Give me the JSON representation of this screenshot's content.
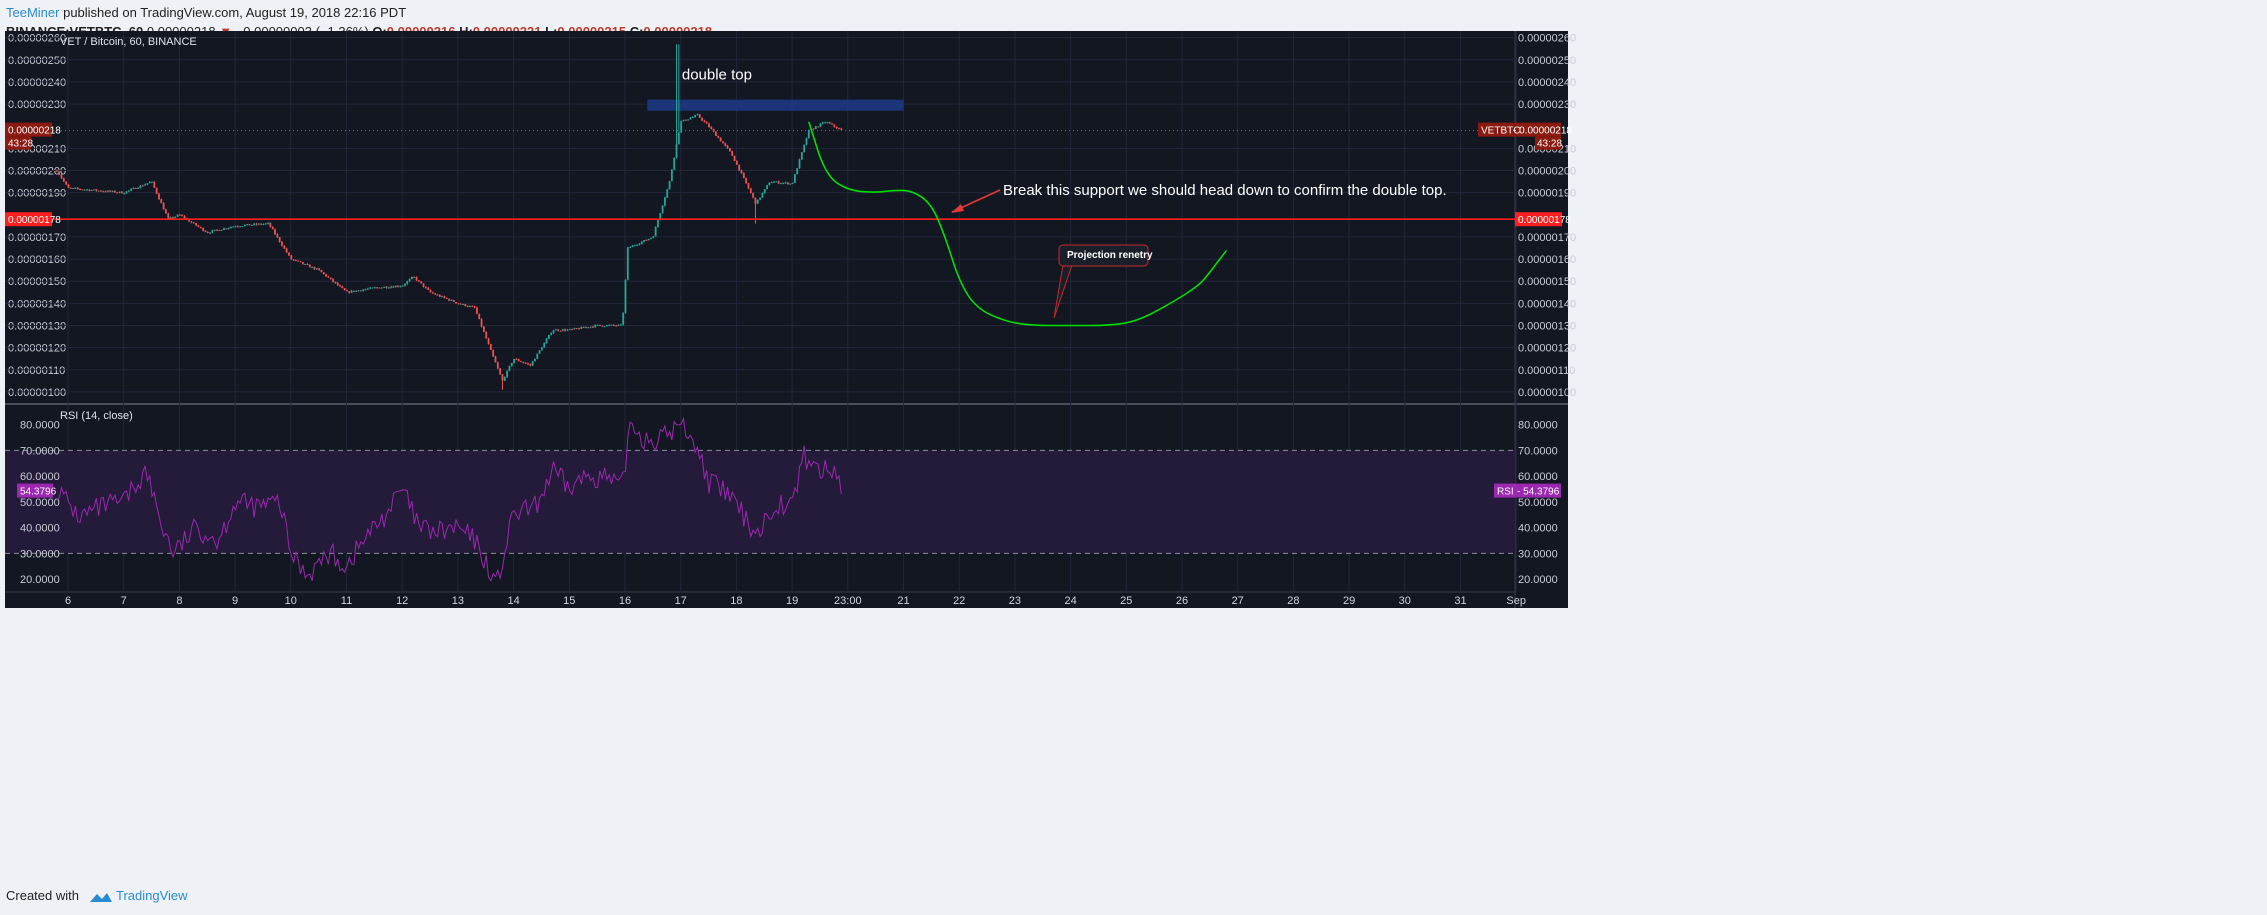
{
  "header": {
    "author": "TeeMiner",
    "published": "published on TradingView.com, August 19, 2018 22:16 PDT",
    "symbol": "BINANCE:VETBTC, 60",
    "last": "0.00000218",
    "change": "−0.00000003 (−1.36%)",
    "open_label": "O:",
    "open": "0.00000216",
    "high_label": "H:",
    "high": "0.00000221",
    "low_label": "L:",
    "low": "0.00000215",
    "close_label": "C:",
    "close": "0.00000218"
  },
  "footer": {
    "created_with": "Created with",
    "brand": "TradingView"
  },
  "colors": {
    "background": "#131722",
    "up": "#26a69a",
    "down": "#ef5350",
    "support": "#ff1f1f",
    "projection": "#00e000",
    "rsi": "#9c27b0",
    "double_top_box": "#1e3a8a"
  },
  "chart_data": [
    {
      "type": "candlestick",
      "title": "VET / Bitcoin, 60, BINANCE",
      "x_ticks": [
        "6",
        "7",
        "8",
        "9",
        "10",
        "11",
        "12",
        "13",
        "14",
        "15",
        "16",
        "17",
        "18",
        "19",
        "23:00",
        "21",
        "22",
        "23",
        "24",
        "25",
        "26",
        "27",
        "28",
        "29",
        "30",
        "31",
        "Sep"
      ],
      "y_ticks": [
        "0.00000260",
        "0.00000250",
        "0.00000240",
        "0.00000230",
        "0.00000210",
        "0.00000200",
        "0.00000190",
        "0.00000170",
        "0.00000160",
        "0.00000150",
        "0.00000140",
        "0.00000130",
        "0.00000120",
        "0.00000110",
        "0.00000100"
      ],
      "ylim": [
        9.5e-07,
        2.63e-06
      ],
      "price_path": [
        [
          5.8,
          2e-06
        ],
        [
          6.0,
          1.92e-06
        ],
        [
          6.5,
          1.91e-06
        ],
        [
          7.0,
          1.9e-06
        ],
        [
          7.5,
          1.95e-06
        ],
        [
          7.8,
          1.78e-06
        ],
        [
          8.0,
          1.8e-06
        ],
        [
          8.5,
          1.72e-06
        ],
        [
          9.0,
          1.75e-06
        ],
        [
          9.6,
          1.76e-06
        ],
        [
          10.0,
          1.6e-06
        ],
        [
          10.5,
          1.55e-06
        ],
        [
          11.0,
          1.45e-06
        ],
        [
          11.5,
          1.47e-06
        ],
        [
          12.0,
          1.48e-06
        ],
        [
          12.2,
          1.52e-06
        ],
        [
          12.5,
          1.45e-06
        ],
        [
          13.0,
          1.4e-06
        ],
        [
          13.3,
          1.38e-06
        ],
        [
          13.6,
          1.18e-06
        ],
        [
          13.8,
          1.05e-06
        ],
        [
          14.0,
          1.15e-06
        ],
        [
          14.3,
          1.12e-06
        ],
        [
          14.7,
          1.28e-06
        ],
        [
          15.0,
          1.28e-06
        ],
        [
          15.5,
          1.3e-06
        ],
        [
          15.95,
          1.3e-06
        ],
        [
          16.05,
          1.65e-06
        ],
        [
          16.5,
          1.7e-06
        ],
        [
          16.8,
          1.95e-06
        ],
        [
          17.0,
          2.22e-06
        ],
        [
          17.3,
          2.25e-06
        ],
        [
          17.5,
          2.2e-06
        ],
        [
          17.9,
          2.08e-06
        ],
        [
          18.1,
          1.98e-06
        ],
        [
          18.35,
          1.85e-06
        ],
        [
          18.6,
          1.95e-06
        ],
        [
          19.0,
          1.94e-06
        ],
        [
          19.3,
          2.18e-06
        ],
        [
          19.6,
          2.22e-06
        ],
        [
          19.9,
          2.18e-06
        ]
      ],
      "horizontal_lines": [
        {
          "price": 2.18e-06,
          "label": "0.00000218",
          "countdown": "43:28",
          "right_tag": "VETBTC",
          "style": "dotted"
        },
        {
          "price": 1.78e-06,
          "label": "0.00000178",
          "style": "solid"
        }
      ],
      "annotations": {
        "double_top": "double top",
        "break_support": "Break this  support we should head down to confirm the double top.",
        "projection": "Projection renetry"
      },
      "projection_path": [
        [
          19.3,
          2.22e-06
        ],
        [
          19.6,
          1.98e-06
        ],
        [
          20.0,
          1.91e-06
        ],
        [
          20.5,
          1.9e-06
        ],
        [
          20.8,
          1.91e-06
        ],
        [
          21.15,
          1.91e-06
        ],
        [
          21.5,
          1.85e-06
        ],
        [
          21.75,
          1.7e-06
        ],
        [
          22.0,
          1.5e-06
        ],
        [
          22.3,
          1.38e-06
        ],
        [
          22.8,
          1.32e-06
        ],
        [
          23.3,
          1.3e-06
        ],
        [
          24.0,
          1.3e-06
        ],
        [
          24.7,
          1.3e-06
        ],
        [
          25.2,
          1.32e-06
        ],
        [
          25.8,
          1.4e-06
        ],
        [
          26.3,
          1.48e-06
        ],
        [
          26.5,
          1.54e-06
        ],
        [
          26.8,
          1.64e-06
        ]
      ]
    },
    {
      "type": "line",
      "title": "RSI (14, close)",
      "y_ticks": [
        "80.0000",
        "70.0000",
        "60.0000",
        "50.0000",
        "40.0000",
        "30.0000",
        "20.0000"
      ],
      "ylim": [
        15,
        88
      ],
      "band": [
        30,
        70
      ],
      "current": "54.3796",
      "right_tag": "RSI",
      "rsi_path": [
        [
          5.8,
          55
        ],
        [
          6.2,
          44
        ],
        [
          6.6,
          48
        ],
        [
          7.0,
          50
        ],
        [
          7.4,
          62
        ],
        [
          7.7,
          40
        ],
        [
          7.9,
          30
        ],
        [
          8.3,
          40
        ],
        [
          8.7,
          35
        ],
        [
          9.0,
          50
        ],
        [
          9.4,
          48
        ],
        [
          9.8,
          50
        ],
        [
          10.0,
          30
        ],
        [
          10.3,
          22
        ],
        [
          10.7,
          30
        ],
        [
          11.0,
          25
        ],
        [
          11.3,
          35
        ],
        [
          11.7,
          45
        ],
        [
          12.0,
          55
        ],
        [
          12.3,
          40
        ],
        [
          12.6,
          38
        ],
        [
          13.0,
          40
        ],
        [
          13.3,
          35
        ],
        [
          13.7,
          18
        ],
        [
          14.0,
          45
        ],
        [
          14.4,
          48
        ],
        [
          14.7,
          62
        ],
        [
          15.0,
          55
        ],
        [
          15.3,
          60
        ],
        [
          15.6,
          60
        ],
        [
          15.95,
          55
        ],
        [
          16.1,
          82
        ],
        [
          16.3,
          75
        ],
        [
          16.6,
          74
        ],
        [
          17.0,
          80
        ],
        [
          17.2,
          76
        ],
        [
          17.5,
          58
        ],
        [
          17.9,
          52
        ],
        [
          18.2,
          42
        ],
        [
          18.4,
          38
        ],
        [
          18.7,
          50
        ],
        [
          19.0,
          48
        ],
        [
          19.2,
          68
        ],
        [
          19.5,
          62
        ],
        [
          19.8,
          62
        ],
        [
          19.9,
          54.4
        ]
      ]
    }
  ]
}
